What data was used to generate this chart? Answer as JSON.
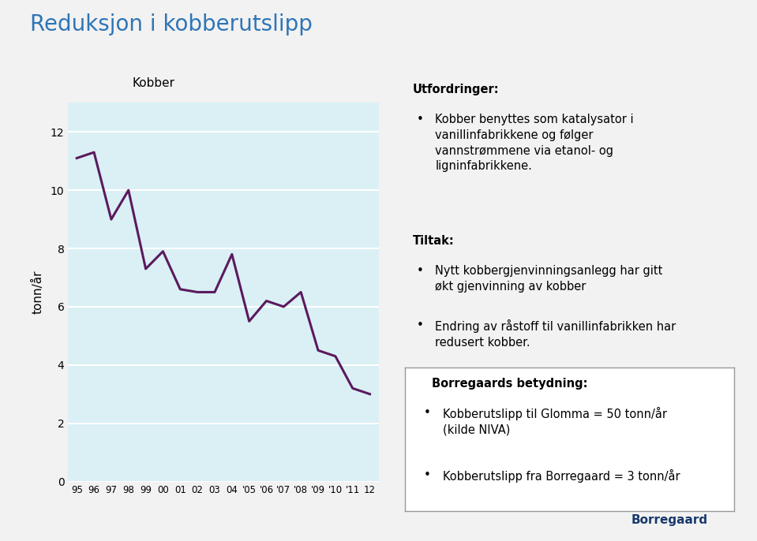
{
  "title": "Reduksjon i kobberutslipp",
  "title_color": "#2E75B6",
  "title_fontsize": 20,
  "chart_title": "Kobber",
  "ylabel": "tonn/år",
  "background_color": "#f2f2f2",
  "plot_bg_color": "#daf0f5",
  "years": [
    1995,
    1996,
    1997,
    1998,
    1999,
    2000,
    2001,
    2002,
    2003,
    2004,
    2005,
    2006,
    2007,
    2008,
    2009,
    2010,
    2011,
    2012
  ],
  "values": [
    11.1,
    11.3,
    9.0,
    10.0,
    7.3,
    7.9,
    6.6,
    6.5,
    6.5,
    7.8,
    5.5,
    6.2,
    6.0,
    6.5,
    4.5,
    4.3,
    3.2,
    3.0
  ],
  "x_labels": [
    "95",
    "96",
    "97",
    "98",
    "99",
    "00",
    "01",
    "02",
    "03",
    "04",
    "'05",
    "'06",
    "'07",
    "'08",
    "'09",
    "'10",
    "'11",
    "12"
  ],
  "line_color": "#5B1A5E",
  "line_width": 2.2,
  "ylim": [
    0,
    13
  ],
  "yticks": [
    0,
    2,
    4,
    6,
    8,
    10,
    12
  ],
  "grid_color": "#ffffff",
  "utfordringer_heading": "Utfordringer:",
  "utfordringer_bullet": "Kobber benyttes som katalysator i\nvanillinfabrikkene og følger\nvannstrømmene via etanol- og\nligninfabrikkene.",
  "tiltak_heading": "Tiltak:",
  "tiltak_bullet1": "Nytt kobbergjenvinningsanlegg har gitt\nøkt gjenvinning av kobber",
  "tiltak_bullet2": "Endring av råstoff til vanillinfabrikken har\nredusert kobber.",
  "borregaard_heading": "Borregaards betydning:",
  "borregaard_bullet1": "Kobberutslipp til Glomma = 50 tonn/år\n(kilde NIVA)",
  "borregaard_bullet2": "Kobberutslipp fra Borregaard = 3 tonn/år"
}
